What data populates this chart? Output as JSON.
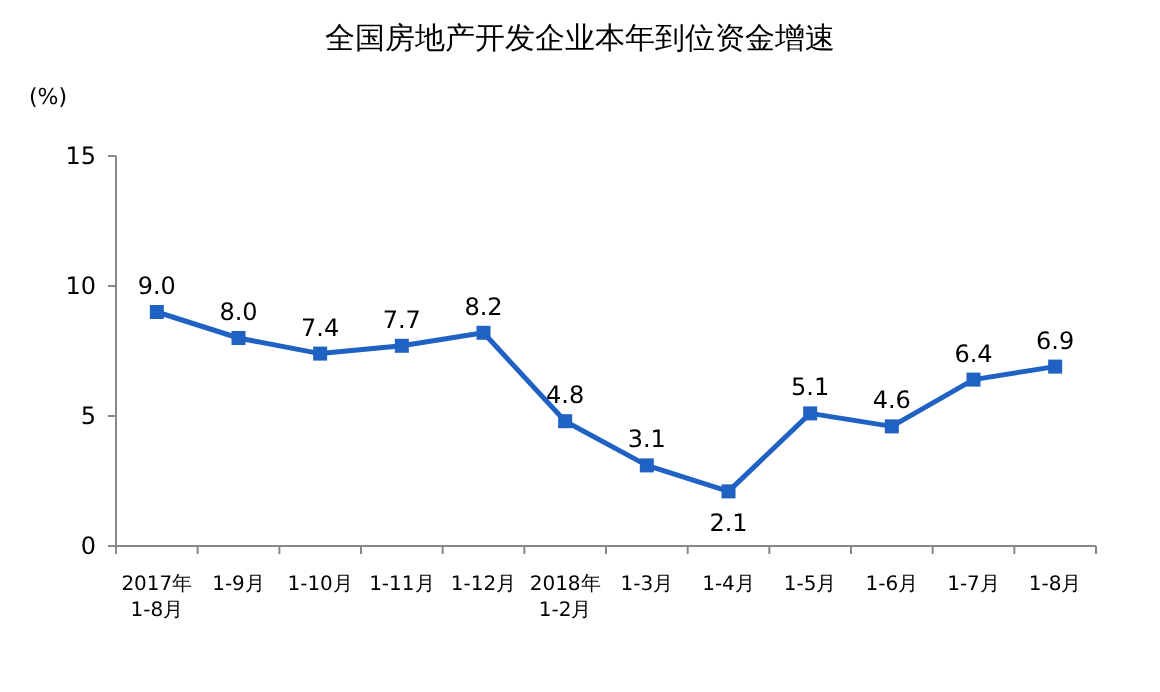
{
  "chart_data": {
    "type": "line",
    "title": "全国房地产开发企业本年到位资金增速",
    "ylabel": "(%)",
    "categories": [
      "2017年\n1-8月",
      "1-9月",
      "1-10月",
      "1-11月",
      "1-12月",
      "2018年\n1-2月",
      "1-3月",
      "1-4月",
      "1-5月",
      "1-6月",
      "1-7月",
      "1-8月"
    ],
    "series": [
      {
        "color": "#1f62c4",
        "values": [
          9.0,
          8.0,
          7.4,
          7.7,
          8.2,
          4.8,
          3.1,
          2.1,
          5.1,
          4.6,
          6.4,
          6.9
        ],
        "value_labels": [
          "9.0",
          "8.0",
          "7.4",
          "7.7",
          "8.2",
          "4.8",
          "3.1",
          "2.1",
          "5.1",
          "4.6",
          "6.4",
          "6.9"
        ]
      }
    ],
    "ylim": [
      0,
      15
    ],
    "yticks": [
      0,
      5,
      10,
      15
    ],
    "marker": "square",
    "line_style": "solid",
    "grid": false
  }
}
